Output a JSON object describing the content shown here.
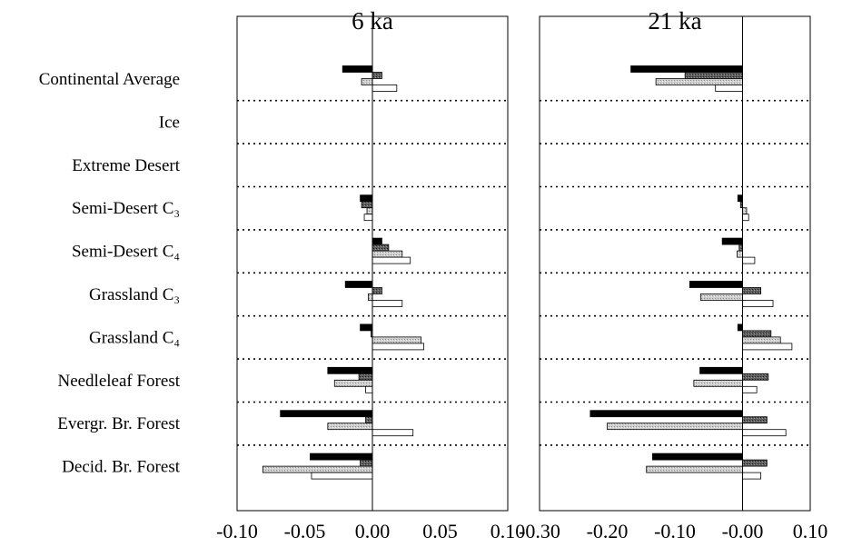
{
  "chart_data": [
    {
      "type": "bar",
      "orientation": "horizontal",
      "title": "6 ka",
      "categories": [
        "Continental Average",
        "Ice",
        "Extreme Desert",
        "Semi-Desert C₃",
        "Semi-Desert C₄",
        "Grassland C₃",
        "Grassland C₄",
        "Needleleaf Forest",
        "Evergr. Br. Forest",
        "Decid. Br. Forest"
      ],
      "xlim": [
        -0.1,
        0.1
      ],
      "xticks": [
        "-0.10",
        "-0.05",
        "0.00",
        "0.05",
        "0.10"
      ],
      "grid": "dotted separators between categories",
      "series": [
        {
          "color": "#000000",
          "values": [
            -0.022,
            null,
            null,
            -0.009,
            0.007,
            -0.02,
            -0.009,
            -0.033,
            -0.068,
            -0.046
          ]
        },
        {
          "color": "#555555",
          "values": [
            0.007,
            null,
            null,
            -0.008,
            0.012,
            0.007,
            -0.001,
            -0.01,
            -0.005,
            -0.009
          ]
        },
        {
          "color": "#c2c2c2",
          "values": [
            -0.008,
            null,
            null,
            -0.004,
            0.022,
            -0.003,
            0.036,
            -0.028,
            -0.033,
            -0.081
          ]
        },
        {
          "color": "#ffffff",
          "values": [
            0.018,
            null,
            null,
            -0.006,
            0.028,
            0.022,
            0.038,
            -0.005,
            0.03,
            -0.045
          ]
        }
      ]
    },
    {
      "type": "bar",
      "orientation": "horizontal",
      "title": "21 ka",
      "categories": [
        "Continental Average",
        "Ice",
        "Extreme Desert",
        "Semi-Desert C₃",
        "Semi-Desert C₄",
        "Grassland C₃",
        "Grassland C₄",
        "Needleleaf Forest",
        "Evergr. Br. Forest",
        "Decid. Br. Forest"
      ],
      "xlim": [
        -0.3,
        0.1
      ],
      "xticks": [
        "-0.30",
        "-0.20",
        "-0.10",
        "-0.00",
        "0.10"
      ],
      "grid": "dotted separators between categories",
      "series": [
        {
          "color": "#000000",
          "values": [
            -0.165,
            null,
            null,
            -0.007,
            -0.03,
            -0.078,
            -0.007,
            -0.063,
            -0.225,
            -0.133
          ]
        },
        {
          "color": "#555555",
          "values": [
            -0.085,
            null,
            null,
            -0.003,
            -0.005,
            0.027,
            0.042,
            0.038,
            0.036,
            0.036
          ]
        },
        {
          "color": "#c2c2c2",
          "values": [
            -0.128,
            null,
            null,
            0.006,
            -0.008,
            -0.062,
            0.056,
            -0.072,
            -0.2,
            -0.142
          ]
        },
        {
          "color": "#ffffff",
          "values": [
            -0.04,
            null,
            null,
            0.009,
            0.018,
            0.045,
            0.073,
            0.021,
            0.064,
            0.027
          ]
        }
      ]
    }
  ]
}
